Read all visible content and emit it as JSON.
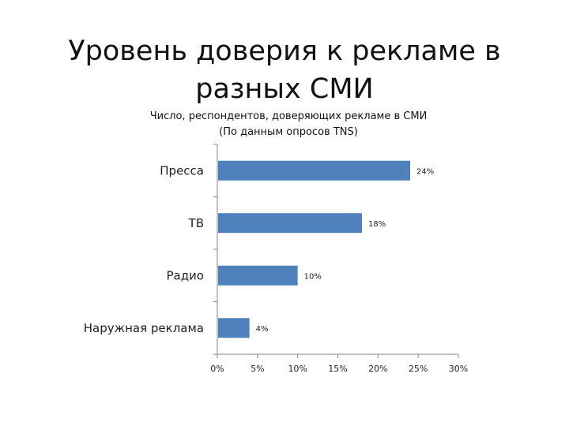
{
  "slide": {
    "title_line1": "Уровень доверия к рекламе в",
    "title_line2": "разных СМИ"
  },
  "chart_data": {
    "type": "bar",
    "orientation": "horizontal",
    "title": "Число, респондентов, доверяющих рекламе в СМИ",
    "subtitle": "(По данным опросов TNS)",
    "categories": [
      "Пресса",
      "ТВ",
      "Радио",
      "Наружная реклама"
    ],
    "values": [
      24,
      18,
      10,
      4
    ],
    "value_labels": [
      "24%",
      "18%",
      "10%",
      "4%"
    ],
    "xlim": [
      0,
      30
    ],
    "x_ticks": [
      0,
      5,
      10,
      15,
      20,
      25,
      30
    ],
    "x_tick_labels": [
      "0%",
      "5%",
      "10%",
      "15%",
      "20%",
      "25%",
      "30%"
    ],
    "grid": false,
    "bar_color": "#4F81BD",
    "axis_color": "#868686"
  }
}
